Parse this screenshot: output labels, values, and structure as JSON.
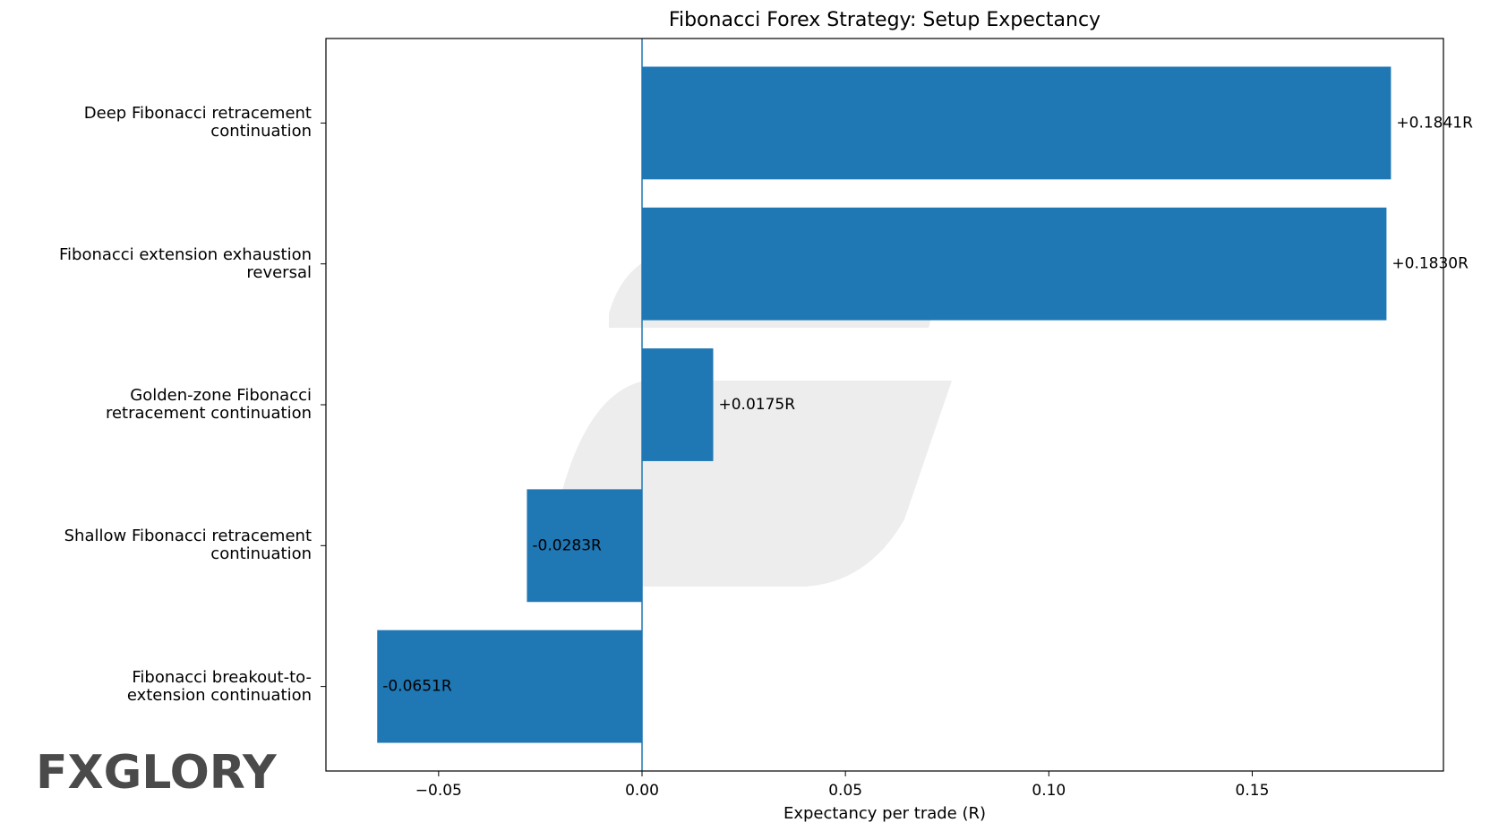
{
  "chart_data": {
    "type": "barh",
    "title": "Fibonacci Forex Strategy: Setup Expectancy",
    "xlabel": "Expectancy per trade (R)",
    "categories": [
      "Deep Fibonacci retracement\ncontinuation",
      "Fibonacci extension exhaustion\nreversal",
      "Golden-zone Fibonacci\nretracement continuation",
      "Shallow Fibonacci retracement\ncontinuation",
      "Fibonacci breakout-to-\nextension continuation"
    ],
    "values": [
      0.1841,
      0.183,
      0.0175,
      -0.0283,
      -0.0651
    ],
    "value_labels": [
      "+0.1841R",
      "+0.1830R",
      "+0.0175R",
      "-0.0283R",
      "-0.0651R"
    ],
    "color": "#1f77b4",
    "xlim": [
      -0.0777,
      0.197
    ],
    "xticks": [
      {
        "value": -0.05,
        "label": "−0.05"
      },
      {
        "value": 0,
        "label": "0.00"
      },
      0.05,
      {
        "value": 0.1,
        "label": "0.10"
      },
      0.15
    ],
    "reference_line": 0,
    "watermark": "FXGLORY"
  }
}
